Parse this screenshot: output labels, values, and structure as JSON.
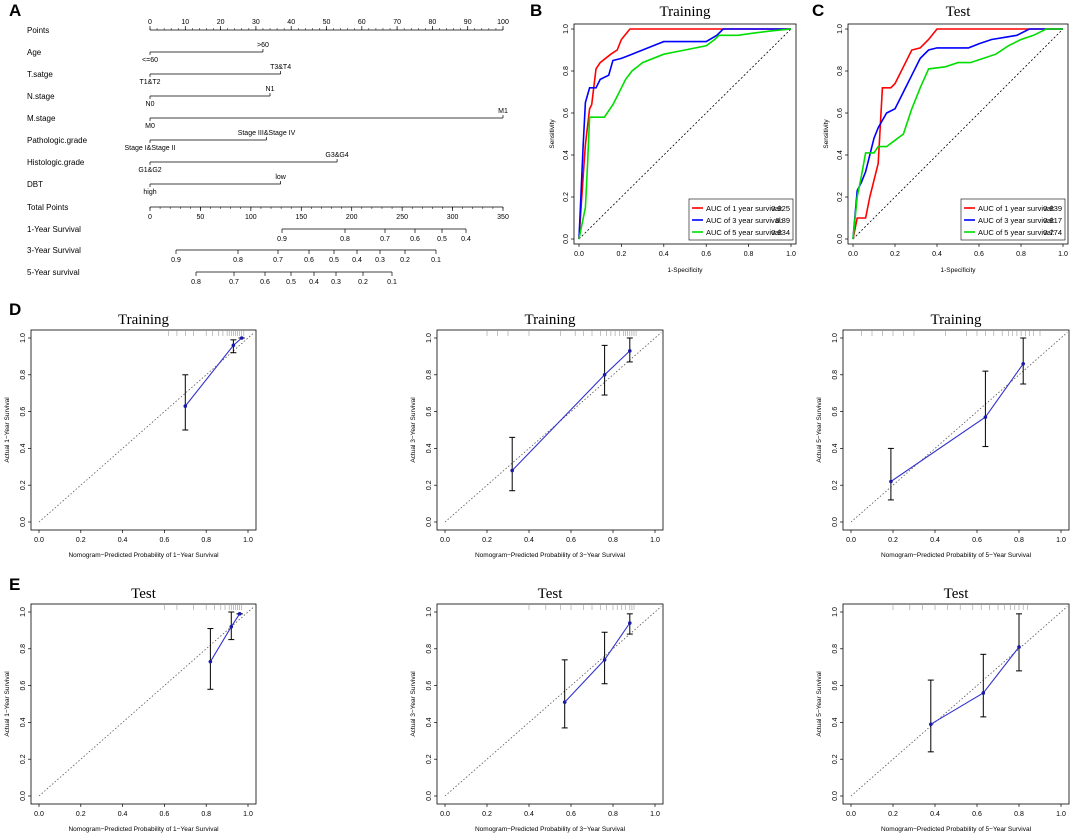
{
  "panels": [
    "A",
    "B",
    "C",
    "D",
    "E"
  ],
  "chart_data": [
    {
      "id": "nomogram",
      "type": "nomogram",
      "rows": [
        {
          "label": "Points",
          "ticks": [
            "0",
            "10",
            "20",
            "30",
            "40",
            "50",
            "60",
            "70",
            "80",
            "90",
            "100"
          ]
        },
        {
          "label": "Age",
          "levels": [
            {
              "text": "<=60",
              "points": 0
            },
            {
              "text": ">60",
              "points": 32
            }
          ]
        },
        {
          "label": "T.satge",
          "levels": [
            {
              "text": "T1&T2",
              "points": 0
            },
            {
              "text": "T3&T4",
              "points": 37
            }
          ]
        },
        {
          "label": "N.stage",
          "levels": [
            {
              "text": "N0",
              "points": 0
            },
            {
              "text": "N1",
              "points": 34
            }
          ]
        },
        {
          "label": "M.stage",
          "levels": [
            {
              "text": "M0",
              "points": 0
            },
            {
              "text": "M1",
              "points": 100
            }
          ]
        },
        {
          "label": "Pathologic.grade",
          "levels": [
            {
              "text": "Stage I&Stage II",
              "points": 0
            },
            {
              "text": "Stage III&Stage IV",
              "points": 33
            }
          ]
        },
        {
          "label": "Histologic.grade",
          "levels": [
            {
              "text": "G1&G2",
              "points": 0
            },
            {
              "text": "G3&G4",
              "points": 53
            }
          ]
        },
        {
          "label": "DBT",
          "levels": [
            {
              "text": "high",
              "points": 0
            },
            {
              "text": "low",
              "points": 37
            }
          ]
        },
        {
          "label": "Total Points",
          "ticks": [
            "0",
            "50",
            "100",
            "150",
            "200",
            "250",
            "300",
            "350"
          ]
        },
        {
          "label": "1-Year Survival",
          "ticks": [
            "0.9",
            "0.8",
            "0.7",
            "0.6",
            "0.5",
            "0.4"
          ]
        },
        {
          "label": "3-Year Survival",
          "ticks": [
            "0.9",
            "0.8",
            "0.7",
            "0.6",
            "0.5",
            "0.4",
            "0.3",
            "0.2",
            "0.1"
          ]
        },
        {
          "label": "5-Year survival",
          "ticks": [
            "0.8",
            "0.7",
            "0.6",
            "0.5",
            "0.4",
            "0.3",
            "0.2",
            "0.1"
          ]
        }
      ]
    },
    {
      "id": "roc-training",
      "type": "line",
      "title": "Training",
      "xlabel": "1-Specificity",
      "ylabel": "Sensitivity",
      "xlim": [
        0,
        1
      ],
      "ylim": [
        0,
        1
      ],
      "ticks": [
        "0.0",
        "0.2",
        "0.4",
        "0.6",
        "0.8",
        "1.0"
      ],
      "series": [
        {
          "name": "AUC of 1 year survival:",
          "auc": "0.925",
          "color": "#ff0000",
          "x": [
            0,
            0.02,
            0.03,
            0.05,
            0.06,
            0.08,
            0.1,
            0.15,
            0.18,
            0.2,
            0.24,
            0.26,
            0.6,
            1.0
          ],
          "y": [
            0,
            0.3,
            0.45,
            0.62,
            0.64,
            0.81,
            0.84,
            0.88,
            0.9,
            0.95,
            1.0,
            1.0,
            1.0,
            1.0
          ]
        },
        {
          "name": "AUC of 3 year survival:",
          "auc": "0.89",
          "color": "#0000ff",
          "x": [
            0,
            0.02,
            0.03,
            0.05,
            0.08,
            0.1,
            0.14,
            0.16,
            0.2,
            0.25,
            0.3,
            0.35,
            0.4,
            0.6,
            0.65,
            0.68,
            1.0
          ],
          "y": [
            0,
            0.45,
            0.65,
            0.72,
            0.72,
            0.76,
            0.78,
            0.85,
            0.86,
            0.88,
            0.9,
            0.92,
            0.94,
            0.94,
            0.97,
            1.0,
            1.0
          ]
        },
        {
          "name": "AUC of 5 year survival:",
          "auc": "0.834",
          "color": "#00dd00",
          "x": [
            0,
            0.03,
            0.04,
            0.05,
            0.08,
            0.12,
            0.16,
            0.18,
            0.2,
            0.22,
            0.25,
            0.3,
            0.4,
            0.5,
            0.6,
            0.64,
            0.66,
            0.7,
            0.75,
            0.82,
            0.9,
            1.0
          ],
          "y": [
            0,
            0.15,
            0.35,
            0.58,
            0.58,
            0.58,
            0.64,
            0.68,
            0.72,
            0.76,
            0.8,
            0.84,
            0.88,
            0.9,
            0.92,
            0.95,
            0.97,
            0.97,
            0.97,
            0.98,
            0.99,
            1.0
          ]
        }
      ]
    },
    {
      "id": "roc-test",
      "type": "line",
      "title": "Test",
      "xlabel": "1-Specificity",
      "ylabel": "Sensitivity",
      "xlim": [
        0,
        1
      ],
      "ylim": [
        0,
        1
      ],
      "ticks": [
        "0.0",
        "0.2",
        "0.4",
        "0.6",
        "0.8",
        "1.0"
      ],
      "series": [
        {
          "name": "AUC of 1 year survival:",
          "auc": "0.839",
          "color": "#ff0000",
          "x": [
            0,
            0.02,
            0.04,
            0.06,
            0.08,
            0.1,
            0.12,
            0.14,
            0.16,
            0.18,
            0.2,
            0.24,
            0.28,
            0.32,
            0.36,
            0.4,
            0.45,
            0.82,
            1.0
          ],
          "y": [
            0,
            0.1,
            0.1,
            0.1,
            0.2,
            0.28,
            0.36,
            0.72,
            0.72,
            0.72,
            0.74,
            0.82,
            0.9,
            0.91,
            0.95,
            1.0,
            1.0,
            1.0,
            1.0
          ]
        },
        {
          "name": "AUC of 3 year survival:",
          "auc": "0.817",
          "color": "#0000ff",
          "x": [
            0,
            0.02,
            0.04,
            0.06,
            0.08,
            0.1,
            0.12,
            0.16,
            0.2,
            0.24,
            0.28,
            0.32,
            0.36,
            0.4,
            0.55,
            0.6,
            0.66,
            0.72,
            0.78,
            0.84,
            1.0
          ],
          "y": [
            0,
            0.23,
            0.27,
            0.32,
            0.4,
            0.48,
            0.53,
            0.6,
            0.62,
            0.7,
            0.78,
            0.86,
            0.9,
            0.91,
            0.91,
            0.93,
            0.95,
            0.96,
            0.97,
            1.0,
            1.0
          ]
        },
        {
          "name": "AUC of 5 year survival:",
          "auc": "0.774",
          "color": "#00dd00",
          "x": [
            0,
            0.02,
            0.04,
            0.06,
            0.08,
            0.1,
            0.12,
            0.16,
            0.2,
            0.24,
            0.28,
            0.32,
            0.36,
            0.44,
            0.5,
            0.56,
            0.62,
            0.68,
            0.74,
            0.8,
            0.86,
            0.92,
            1.0
          ],
          "y": [
            0,
            0.2,
            0.3,
            0.41,
            0.41,
            0.41,
            0.44,
            0.44,
            0.47,
            0.5,
            0.62,
            0.72,
            0.81,
            0.82,
            0.84,
            0.84,
            0.86,
            0.88,
            0.92,
            0.95,
            0.97,
            1.0,
            1.0
          ]
        }
      ]
    },
    {
      "id": "calib-train-1y",
      "type": "scatter",
      "title": "Training",
      "xlabel": "Nomogram−Predicted Probability of 1−Year Survival",
      "ylabel": "Actual 1−Year Survival",
      "xlim": [
        0,
        1
      ],
      "ylim": [
        0,
        1
      ],
      "ticks": [
        "0.0",
        "0.2",
        "0.4",
        "0.6",
        "0.8",
        "1.0"
      ],
      "points": [
        {
          "x": 0.7,
          "y": 0.63,
          "lo": 0.5,
          "hi": 0.8
        },
        {
          "x": 0.93,
          "y": 0.96,
          "lo": 0.92,
          "hi": 0.99
        },
        {
          "x": 0.97,
          "y": 1.0,
          "lo": 1.0,
          "hi": 1.0
        }
      ],
      "rug": [
        0.62,
        0.66,
        0.7,
        0.74,
        0.8,
        0.83,
        0.86,
        0.88,
        0.9,
        0.91,
        0.92,
        0.93,
        0.94,
        0.95,
        0.96,
        0.97,
        0.98
      ]
    },
    {
      "id": "calib-train-3y",
      "type": "scatter",
      "title": "Training",
      "xlabel": "Nomogram−Predicted Probability of 3−Year Survival",
      "ylabel": "Actual 3−Year Survival",
      "xlim": [
        0,
        1
      ],
      "ylim": [
        0,
        1
      ],
      "ticks": [
        "0.0",
        "0.2",
        "0.4",
        "0.6",
        "0.8",
        "1.0"
      ],
      "points": [
        {
          "x": 0.32,
          "y": 0.28,
          "lo": 0.17,
          "hi": 0.46
        },
        {
          "x": 0.76,
          "y": 0.8,
          "lo": 0.69,
          "hi": 0.96
        },
        {
          "x": 0.88,
          "y": 0.93,
          "lo": 0.87,
          "hi": 1.0
        }
      ],
      "rug": [
        0.2,
        0.25,
        0.3,
        0.4,
        0.55,
        0.62,
        0.66,
        0.7,
        0.74,
        0.77,
        0.79,
        0.81,
        0.83,
        0.85,
        0.86,
        0.87,
        0.88,
        0.89,
        0.9,
        0.91
      ]
    },
    {
      "id": "calib-train-5y",
      "type": "scatter",
      "title": "Training",
      "xlabel": "Nomogram−Predicted Probability of 5−Year Survival",
      "ylabel": "Actual 5−Year Survival",
      "xlim": [
        0,
        1
      ],
      "ylim": [
        0,
        1
      ],
      "ticks": [
        "0.0",
        "0.2",
        "0.4",
        "0.6",
        "0.8",
        "1.0"
      ],
      "points": [
        {
          "x": 0.19,
          "y": 0.22,
          "lo": 0.12,
          "hi": 0.4
        },
        {
          "x": 0.64,
          "y": 0.57,
          "lo": 0.41,
          "hi": 0.82
        },
        {
          "x": 0.82,
          "y": 0.86,
          "lo": 0.75,
          "hi": 1.0
        }
      ],
      "rug": [
        0.05,
        0.1,
        0.15,
        0.2,
        0.25,
        0.3,
        0.45,
        0.55,
        0.6,
        0.64,
        0.68,
        0.72,
        0.75,
        0.77,
        0.79,
        0.81,
        0.83,
        0.85,
        0.87,
        0.9
      ]
    },
    {
      "id": "calib-test-1y",
      "type": "scatter",
      "title": "Test",
      "xlabel": "Nomogram−Predicted Probability of 1−Year Survival",
      "ylabel": "Actual 1−Year Survival",
      "xlim": [
        0,
        1
      ],
      "ylim": [
        0,
        1
      ],
      "ticks": [
        "0.0",
        "0.2",
        "0.4",
        "0.6",
        "0.8",
        "1.0"
      ],
      "points": [
        {
          "x": 0.82,
          "y": 0.73,
          "lo": 0.58,
          "hi": 0.91
        },
        {
          "x": 0.92,
          "y": 0.92,
          "lo": 0.85,
          "hi": 1.0
        },
        {
          "x": 0.96,
          "y": 0.99,
          "lo": 0.99,
          "hi": 0.99
        }
      ],
      "rug": [
        0.6,
        0.66,
        0.74,
        0.8,
        0.84,
        0.87,
        0.89,
        0.91,
        0.92,
        0.93,
        0.94,
        0.95,
        0.96,
        0.97
      ]
    },
    {
      "id": "calib-test-3y",
      "type": "scatter",
      "title": "Test",
      "xlabel": "Nomogram−Predicted Probability of 3−Year Survival",
      "ylabel": "Actual 3−Year Survival",
      "xlim": [
        0,
        1
      ],
      "ylim": [
        0,
        1
      ],
      "ticks": [
        "0.0",
        "0.2",
        "0.4",
        "0.6",
        "0.8",
        "1.0"
      ],
      "points": [
        {
          "x": 0.57,
          "y": 0.51,
          "lo": 0.37,
          "hi": 0.74
        },
        {
          "x": 0.76,
          "y": 0.74,
          "lo": 0.61,
          "hi": 0.89
        },
        {
          "x": 0.88,
          "y": 0.94,
          "lo": 0.88,
          "hi": 0.99
        }
      ],
      "rug": [
        0.4,
        0.48,
        0.55,
        0.6,
        0.66,
        0.7,
        0.74,
        0.77,
        0.8,
        0.82,
        0.84,
        0.86,
        0.88,
        0.89,
        0.9
      ]
    },
    {
      "id": "calib-test-5y",
      "type": "scatter",
      "title": "Test",
      "xlabel": "Nomogram−Predicted Probability of 5−Year Survival",
      "ylabel": "Actual 5−Year Survival",
      "xlim": [
        0,
        1
      ],
      "ylim": [
        0,
        1
      ],
      "ticks": [
        "0.0",
        "0.2",
        "0.4",
        "0.6",
        "0.8",
        "1.0"
      ],
      "points": [
        {
          "x": 0.38,
          "y": 0.39,
          "lo": 0.24,
          "hi": 0.63
        },
        {
          "x": 0.63,
          "y": 0.56,
          "lo": 0.43,
          "hi": 0.77
        },
        {
          "x": 0.8,
          "y": 0.81,
          "lo": 0.68,
          "hi": 0.99
        }
      ],
      "rug": [
        0.2,
        0.28,
        0.34,
        0.4,
        0.46,
        0.52,
        0.58,
        0.62,
        0.66,
        0.7,
        0.73,
        0.76,
        0.78,
        0.8,
        0.82,
        0.84
      ]
    }
  ]
}
